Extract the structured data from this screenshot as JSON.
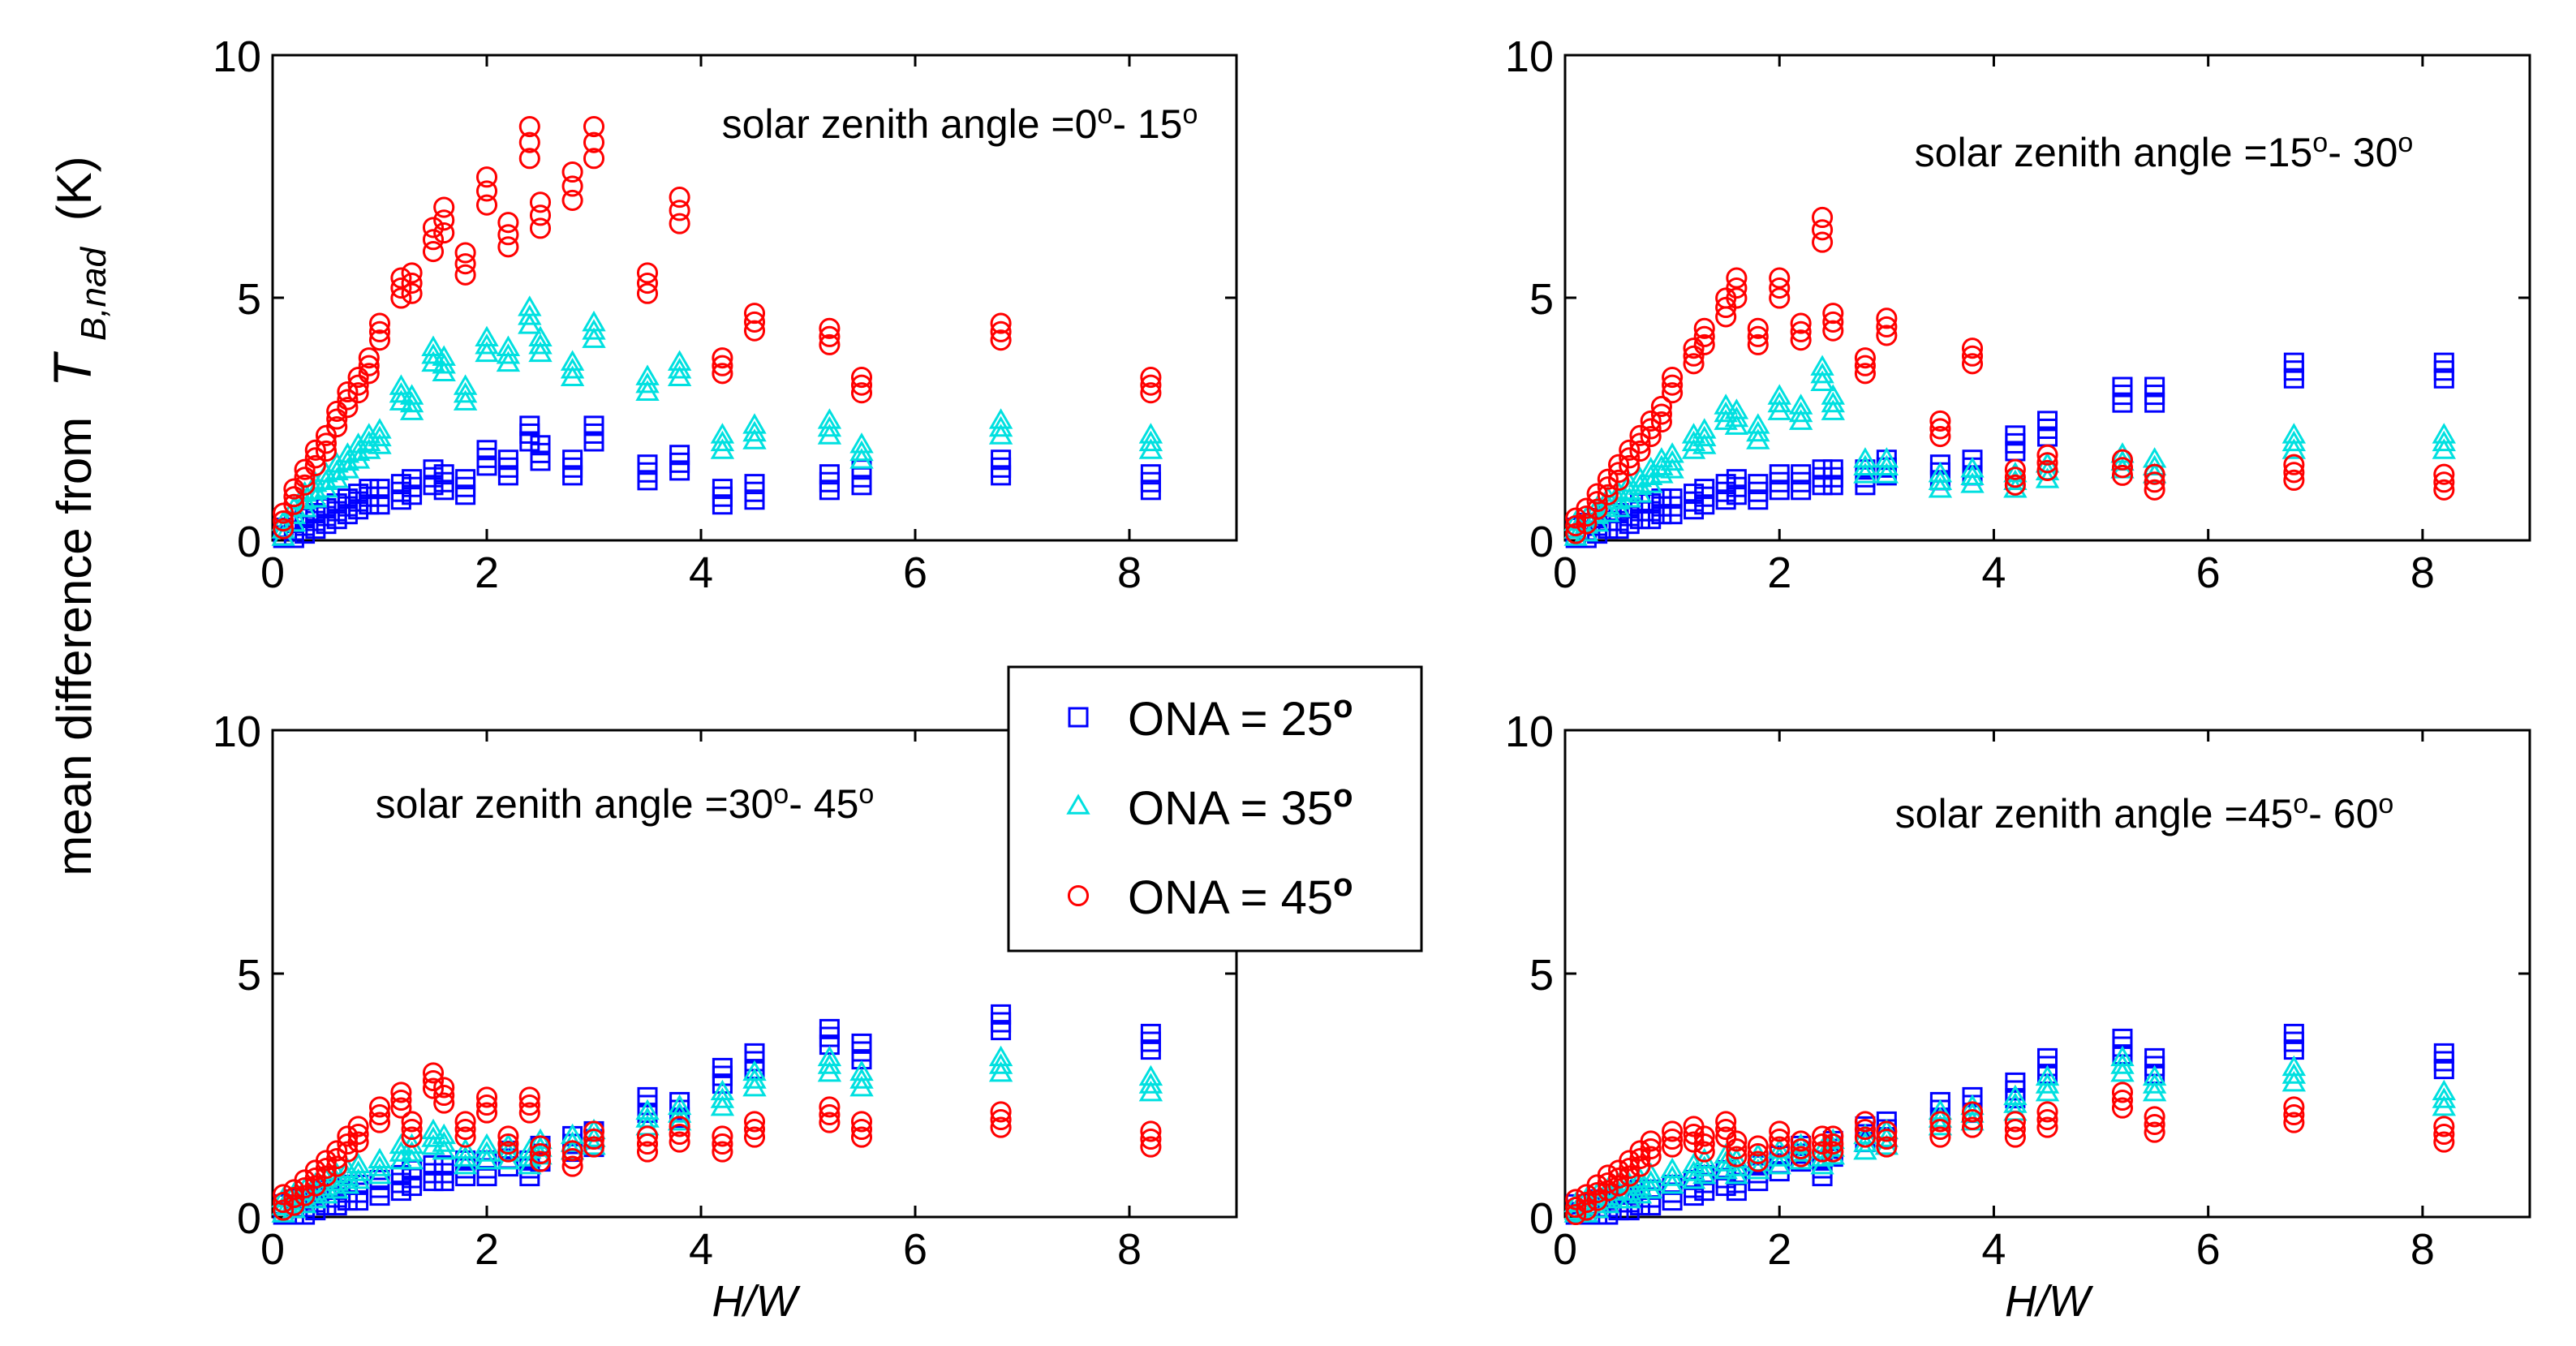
{
  "figure": {
    "ylabel_prefix": "mean difference from",
    "ylabel_symbol": "T",
    "ylabel_subscript": "B,nad",
    "ylabel_unit": "(K)",
    "xlabel": "H/W"
  },
  "legend": [
    {
      "label": "ONA = 25",
      "deg": "o",
      "color": "#0000ff",
      "marker": "square"
    },
    {
      "label": "ONA = 35",
      "deg": "o",
      "color": "#00e0e0",
      "marker": "triangle"
    },
    {
      "label": "ONA = 45",
      "deg": "o",
      "color": "#ff0000",
      "marker": "circle"
    }
  ],
  "chart_data": [
    {
      "type": "scatter",
      "title": "solar zenith angle =0°- 15°",
      "title_parts": [
        "solar zenith angle =0",
        "o",
        "- 15",
        "o"
      ],
      "xlim": [
        0,
        9
      ],
      "ylim": [
        0,
        10
      ],
      "xticks": [
        0,
        2,
        4,
        6,
        8
      ],
      "yticks": [
        0,
        5,
        10
      ],
      "xlabel": "",
      "ylabel": "",
      "series": [
        {
          "name": "ONA = 25°",
          "x": [
            0.1,
            0.2,
            0.3,
            0.4,
            0.5,
            0.6,
            0.7,
            0.8,
            0.9,
            1.0,
            1.2,
            1.3,
            1.5,
            1.6,
            1.8,
            2.0,
            2.2,
            2.4,
            2.5,
            2.8,
            3.0,
            3.5,
            3.8,
            4.2,
            4.5,
            5.2,
            5.5,
            6.8,
            8.2
          ],
          "y": [
            0.1,
            0.2,
            0.3,
            0.4,
            0.5,
            0.6,
            0.7,
            0.8,
            0.9,
            0.9,
            1.0,
            1.1,
            1.3,
            1.2,
            1.1,
            1.7,
            1.5,
            2.2,
            1.8,
            1.5,
            2.2,
            1.4,
            1.6,
            0.9,
            1.0,
            1.2,
            1.3,
            1.5,
            1.2
          ]
        },
        {
          "name": "ONA = 35°",
          "x": [
            0.1,
            0.2,
            0.3,
            0.4,
            0.5,
            0.6,
            0.7,
            0.8,
            0.9,
            1.0,
            1.2,
            1.3,
            1.5,
            1.6,
            1.8,
            2.0,
            2.2,
            2.4,
            2.5,
            2.8,
            3.0,
            3.5,
            3.8,
            4.2,
            4.5,
            5.2,
            5.5,
            6.8,
            8.2
          ],
          "y": [
            0.2,
            0.5,
            0.8,
            1.0,
            1.2,
            1.4,
            1.6,
            1.8,
            2.0,
            2.1,
            3.0,
            2.8,
            3.8,
            3.6,
            3.0,
            4.0,
            3.8,
            4.6,
            4.0,
            3.5,
            4.3,
            3.2,
            3.5,
            2.0,
            2.2,
            2.3,
            1.8,
            2.3,
            2.0
          ]
        },
        {
          "name": "ONA = 45°",
          "x": [
            0.1,
            0.2,
            0.3,
            0.4,
            0.5,
            0.6,
            0.7,
            0.8,
            0.9,
            1.0,
            1.2,
            1.3,
            1.5,
            1.6,
            1.8,
            2.0,
            2.2,
            2.4,
            2.5,
            2.8,
            3.0,
            3.5,
            3.8,
            4.2,
            4.5,
            5.2,
            5.5,
            6.8,
            8.2
          ],
          "y": [
            0.4,
            0.9,
            1.3,
            1.7,
            2.0,
            2.5,
            2.9,
            3.2,
            3.6,
            4.3,
            5.2,
            5.3,
            6.2,
            6.6,
            5.7,
            7.2,
            6.3,
            8.2,
            6.7,
            7.3,
            8.2,
            5.3,
            6.8,
            3.6,
            4.5,
            4.2,
            3.2,
            4.3,
            3.2
          ]
        }
      ]
    },
    {
      "type": "scatter",
      "title": "solar zenith angle =15°- 30°",
      "title_parts": [
        "solar zenith angle =15",
        "o",
        "- 30",
        "o"
      ],
      "xlim": [
        0,
        9
      ],
      "ylim": [
        0,
        10
      ],
      "xticks": [
        0,
        2,
        4,
        6,
        8
      ],
      "yticks": [
        0,
        5,
        10
      ],
      "xlabel": "",
      "ylabel": "",
      "series": [
        {
          "name": "ONA = 25°",
          "x": [
            0.1,
            0.2,
            0.3,
            0.4,
            0.5,
            0.6,
            0.7,
            0.8,
            0.9,
            1.0,
            1.2,
            1.3,
            1.5,
            1.6,
            1.8,
            2.0,
            2.2,
            2.4,
            2.5,
            2.8,
            3.0,
            3.5,
            3.8,
            4.2,
            4.5,
            5.2,
            5.5,
            6.8,
            8.2
          ],
          "y": [
            0.1,
            0.2,
            0.3,
            0.4,
            0.4,
            0.5,
            0.6,
            0.6,
            0.7,
            0.7,
            0.8,
            0.9,
            1.0,
            1.1,
            1.0,
            1.2,
            1.2,
            1.3,
            1.3,
            1.3,
            1.5,
            1.4,
            1.5,
            2.0,
            2.3,
            3.0,
            3.0,
            3.5,
            3.5
          ]
        },
        {
          "name": "ONA = 35°",
          "x": [
            0.1,
            0.2,
            0.3,
            0.4,
            0.5,
            0.6,
            0.7,
            0.8,
            0.9,
            1.0,
            1.2,
            1.3,
            1.5,
            1.6,
            1.8,
            2.0,
            2.2,
            2.4,
            2.5,
            2.8,
            3.0,
            3.5,
            3.8,
            4.2,
            4.5,
            5.2,
            5.5,
            6.8,
            8.2
          ],
          "y": [
            0.2,
            0.3,
            0.5,
            0.7,
            0.8,
            1.0,
            1.1,
            1.3,
            1.5,
            1.6,
            2.0,
            2.1,
            2.6,
            2.5,
            2.2,
            2.8,
            2.6,
            3.4,
            2.8,
            1.5,
            1.5,
            1.2,
            1.3,
            1.2,
            1.4,
            1.6,
            1.5,
            2.0,
            2.0
          ]
        },
        {
          "name": "ONA = 45°",
          "x": [
            0.1,
            0.2,
            0.3,
            0.4,
            0.5,
            0.6,
            0.7,
            0.8,
            0.9,
            1.0,
            1.2,
            1.3,
            1.5,
            1.6,
            1.8,
            2.0,
            2.2,
            2.4,
            2.5,
            2.8,
            3.0,
            3.5,
            3.8,
            4.2,
            4.5,
            5.2,
            5.5,
            6.8,
            8.2
          ],
          "y": [
            0.3,
            0.5,
            0.8,
            1.1,
            1.4,
            1.7,
            2.0,
            2.3,
            2.6,
            3.2,
            3.8,
            4.2,
            4.8,
            5.2,
            4.2,
            5.2,
            4.3,
            6.4,
            4.5,
            3.6,
            4.4,
            2.3,
            3.8,
            1.3,
            1.6,
            1.5,
            1.2,
            1.4,
            1.2
          ]
        }
      ]
    },
    {
      "type": "scatter",
      "title": "solar zenith angle =30°- 45°",
      "title_parts": [
        "solar zenith angle =30",
        "o",
        "- 45",
        "o"
      ],
      "xlim": [
        0,
        9
      ],
      "ylim": [
        0,
        10
      ],
      "xticks": [
        0,
        2,
        4,
        6,
        8
      ],
      "yticks": [
        0,
        5,
        10
      ],
      "xlabel": "H/W",
      "ylabel": "",
      "series": [
        {
          "name": "ONA = 25°",
          "x": [
            0.1,
            0.2,
            0.3,
            0.4,
            0.5,
            0.6,
            0.7,
            0.8,
            1.0,
            1.2,
            1.3,
            1.5,
            1.6,
            1.8,
            2.0,
            2.2,
            2.4,
            2.5,
            2.8,
            3.0,
            3.5,
            3.8,
            4.2,
            4.5,
            5.2,
            5.5,
            6.8,
            8.2
          ],
          "y": [
            0.1,
            0.2,
            0.2,
            0.3,
            0.4,
            0.4,
            0.5,
            0.5,
            0.6,
            0.7,
            0.8,
            0.9,
            0.9,
            1.0,
            1.0,
            1.2,
            1.0,
            1.3,
            1.5,
            1.6,
            2.3,
            2.2,
            2.9,
            3.2,
            3.7,
            3.4,
            4.0,
            3.6
          ]
        },
        {
          "name": "ONA = 35°",
          "x": [
            0.1,
            0.2,
            0.3,
            0.4,
            0.5,
            0.6,
            0.7,
            0.8,
            1.0,
            1.2,
            1.3,
            1.5,
            1.6,
            1.8,
            2.0,
            2.2,
            2.4,
            2.5,
            2.8,
            3.0,
            3.5,
            3.8,
            4.2,
            4.5,
            5.2,
            5.5,
            6.8,
            8.2
          ],
          "y": [
            0.2,
            0.3,
            0.4,
            0.5,
            0.6,
            0.7,
            0.8,
            0.9,
            1.0,
            1.3,
            1.3,
            1.6,
            1.5,
            1.2,
            1.3,
            1.3,
            1.2,
            1.4,
            1.5,
            1.6,
            2.0,
            2.1,
            2.4,
            2.8,
            3.1,
            2.8,
            3.1,
            2.7
          ]
        },
        {
          "name": "ONA = 45°",
          "x": [
            0.1,
            0.2,
            0.3,
            0.4,
            0.5,
            0.6,
            0.7,
            0.8,
            1.0,
            1.2,
            1.3,
            1.5,
            1.6,
            1.8,
            2.0,
            2.2,
            2.4,
            2.5,
            2.8,
            3.0,
            3.5,
            3.8,
            4.2,
            4.5,
            5.2,
            5.5,
            6.8,
            8.2
          ],
          "y": [
            0.3,
            0.4,
            0.6,
            0.8,
            1.0,
            1.2,
            1.5,
            1.7,
            2.1,
            2.4,
            1.8,
            2.8,
            2.5,
            1.8,
            2.3,
            1.5,
            2.3,
            1.3,
            1.2,
            1.6,
            1.5,
            1.7,
            1.5,
            1.8,
            2.1,
            1.8,
            2.0,
            1.6
          ]
        }
      ]
    },
    {
      "type": "scatter",
      "title": "solar zenith angle =45°- 60°",
      "title_parts": [
        "solar zenith angle =45",
        "o",
        "- 60",
        "o"
      ],
      "xlim": [
        0,
        9
      ],
      "ylim": [
        0,
        10
      ],
      "xticks": [
        0,
        2,
        4,
        6,
        8
      ],
      "yticks": [
        0,
        5,
        10
      ],
      "xlabel": "H/W",
      "ylabel": "",
      "series": [
        {
          "name": "ONA = 25°",
          "x": [
            0.1,
            0.2,
            0.3,
            0.4,
            0.5,
            0.6,
            0.7,
            0.8,
            1.0,
            1.2,
            1.3,
            1.5,
            1.6,
            1.8,
            2.0,
            2.2,
            2.4,
            2.5,
            2.8,
            3.0,
            3.5,
            3.8,
            4.2,
            4.5,
            5.2,
            5.5,
            6.8,
            8.2
          ],
          "y": [
            0.1,
            0.1,
            0.2,
            0.2,
            0.3,
            0.3,
            0.4,
            0.4,
            0.5,
            0.6,
            0.7,
            0.8,
            0.7,
            0.9,
            1.1,
            1.3,
            1.0,
            1.4,
            1.7,
            1.8,
            2.2,
            2.3,
            2.6,
            3.1,
            3.5,
            3.1,
            3.6,
            3.2
          ]
        },
        {
          "name": "ONA = 35°",
          "x": [
            0.1,
            0.2,
            0.3,
            0.4,
            0.5,
            0.6,
            0.7,
            0.8,
            1.0,
            1.2,
            1.3,
            1.5,
            1.6,
            1.8,
            2.0,
            2.2,
            2.4,
            2.5,
            2.8,
            3.0,
            3.5,
            3.8,
            4.2,
            4.5,
            5.2,
            5.5,
            6.8,
            8.2
          ],
          "y": [
            0.1,
            0.2,
            0.3,
            0.4,
            0.5,
            0.5,
            0.6,
            0.7,
            0.8,
            0.9,
            1.0,
            1.1,
            1.0,
            1.1,
            1.2,
            1.3,
            1.2,
            1.4,
            1.5,
            1.6,
            2.0,
            2.1,
            2.3,
            2.7,
            3.1,
            2.7,
            2.9,
            2.4
          ]
        },
        {
          "name": "ONA = 45°",
          "x": [
            0.1,
            0.2,
            0.3,
            0.4,
            0.5,
            0.6,
            0.7,
            0.8,
            1.0,
            1.2,
            1.3,
            1.5,
            1.6,
            1.8,
            2.0,
            2.2,
            2.4,
            2.5,
            2.8,
            3.0,
            3.5,
            3.8,
            4.2,
            4.5,
            5.2,
            5.5,
            6.8,
            8.2
          ],
          "y": [
            0.2,
            0.3,
            0.5,
            0.7,
            0.8,
            1.0,
            1.2,
            1.4,
            1.6,
            1.7,
            1.5,
            1.8,
            1.4,
            1.3,
            1.6,
            1.4,
            1.5,
            1.5,
            1.8,
            1.6,
            1.8,
            2.0,
            1.8,
            2.0,
            2.4,
            1.9,
            2.1,
            1.7
          ]
        }
      ]
    }
  ]
}
